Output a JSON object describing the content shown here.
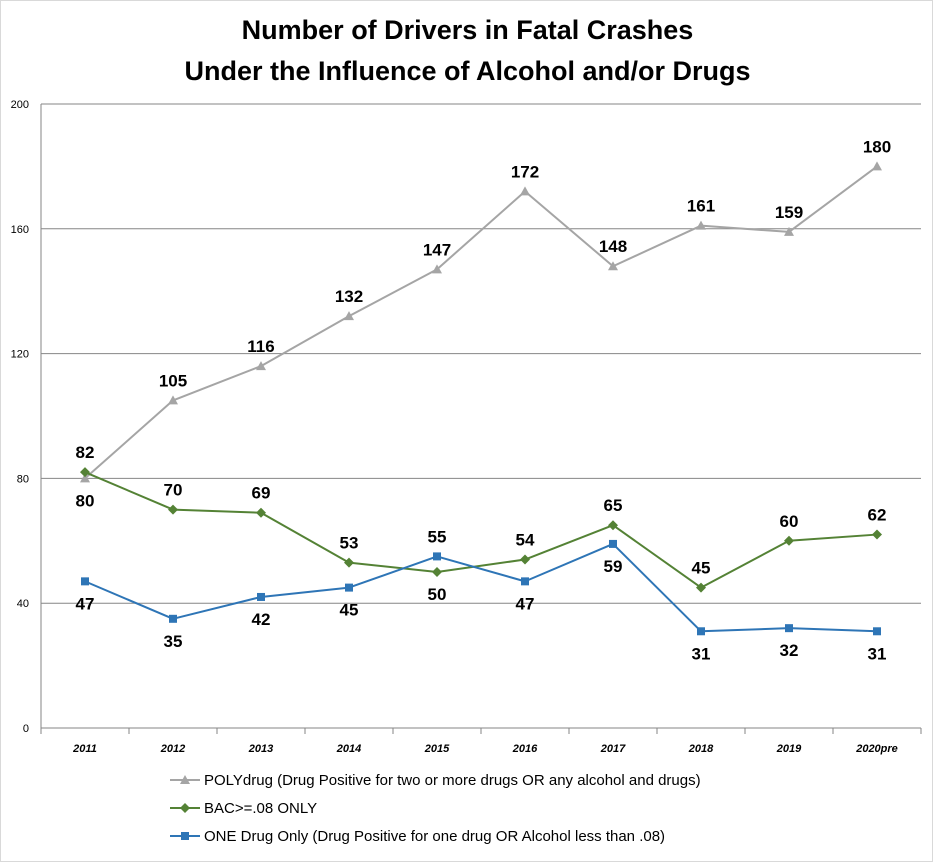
{
  "chart_data": {
    "type": "line",
    "title": [
      "Number of Drivers in Fatal Crashes",
      "Under the Influence of Alcohol and/or Drugs"
    ],
    "x": [
      "2011",
      "2012",
      "2013",
      "2014",
      "2015",
      "2016",
      "2017",
      "2018",
      "2019",
      "2020pre"
    ],
    "ylim": [
      0,
      200
    ],
    "yticks": [
      "0",
      "40",
      "80",
      "120",
      "160",
      "200"
    ],
    "grid": "horizontal",
    "legend_position": "bottom",
    "series": [
      {
        "name": "POLYdrug (Drug Positive for two or more drugs OR any alcohol and drugs)",
        "color": "#a5a5a5",
        "marker": "triangle",
        "values": [
          80,
          105,
          116,
          132,
          147,
          172,
          148,
          161,
          159,
          180
        ],
        "labels": [
          "80",
          "105",
          "116",
          "132",
          "147",
          "172",
          "148",
          "161",
          "159",
          "180"
        ]
      },
      {
        "name": "BAC>=.08 ONLY",
        "color": "#548235",
        "marker": "diamond",
        "values": [
          82,
          70,
          69,
          53,
          50,
          54,
          65,
          45,
          60,
          62
        ],
        "labels": [
          "82",
          "70",
          "69",
          "53",
          "50",
          "54",
          "65",
          "45",
          "60",
          "62"
        ]
      },
      {
        "name": "ONE Drug Only (Drug Positive for one drug OR Alcohol less than .08)",
        "color": "#2e75b6",
        "marker": "square",
        "values": [
          47,
          35,
          42,
          45,
          55,
          47,
          59,
          31,
          32,
          31
        ],
        "labels": [
          "47",
          "35",
          "42",
          "45",
          "55",
          "47",
          "59",
          "31",
          "32",
          "31"
        ]
      }
    ]
  }
}
